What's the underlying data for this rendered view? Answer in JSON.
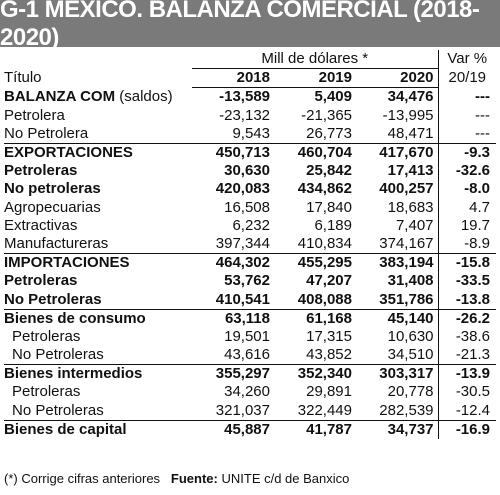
{
  "title": "G-1  MÉXICO. BALANZA COMERCIAL (2018-2020)",
  "header": {
    "units": "Mill de dólares *",
    "var_label": "Var %",
    "titulo_label": "Título",
    "years": [
      "2018",
      "2019",
      "2020"
    ],
    "var_period": "20/19"
  },
  "chart_data": {
    "type": "table",
    "columns": [
      "Título",
      "2018",
      "2019",
      "2020",
      "Var % 20/19"
    ],
    "rows": [
      {
        "label": "BALANZA COM",
        "label_suffix": " (saldos)",
        "values": [
          "-13,589",
          "5,409",
          "34,476"
        ],
        "var": "---",
        "bold": true,
        "indent": false,
        "sep": false
      },
      {
        "label": "Petrolera",
        "label_suffix": "",
        "values": [
          "-23,132",
          "-21,365",
          "-13,995"
        ],
        "var": "---",
        "bold": false,
        "indent": false,
        "sep": false
      },
      {
        "label": "No Petrolera",
        "label_suffix": "",
        "values": [
          "9,543",
          "26,773",
          "48,471"
        ],
        "var": "---",
        "bold": false,
        "indent": false,
        "sep": false
      },
      {
        "label": "EXPORTACIONES",
        "label_suffix": "",
        "values": [
          "450,713",
          "460,704",
          "417,670"
        ],
        "var": "-9.3",
        "bold": true,
        "indent": false,
        "sep": true
      },
      {
        "label": "Petroleras",
        "label_suffix": "",
        "values": [
          "30,630",
          "25,842",
          "17,413"
        ],
        "var": "-32.6",
        "bold": true,
        "indent": false,
        "sep": false
      },
      {
        "label": "No petroleras",
        "label_suffix": "",
        "values": [
          "420,083",
          "434,862",
          "400,257"
        ],
        "var": "-8.0",
        "bold": true,
        "indent": false,
        "sep": false
      },
      {
        "label": "Agropecuarias",
        "label_suffix": "",
        "values": [
          "16,508",
          "17,840",
          "18,683"
        ],
        "var": "4.7",
        "bold": false,
        "indent": false,
        "sep": false
      },
      {
        "label": "Extractivas",
        "label_suffix": "",
        "values": [
          "6,232",
          "6,189",
          "7,407"
        ],
        "var": "19.7",
        "bold": false,
        "indent": false,
        "sep": false
      },
      {
        "label": "Manufactureras",
        "label_suffix": "",
        "values": [
          "397,344",
          "410,834",
          "374,167"
        ],
        "var": "-8.9",
        "bold": false,
        "indent": false,
        "sep": false
      },
      {
        "label": "IMPORTACIONES",
        "label_suffix": "",
        "values": [
          "464,302",
          "455,295",
          "383,194"
        ],
        "var": "-15.8",
        "bold": true,
        "indent": false,
        "sep": true
      },
      {
        "label": "Petroleras",
        "label_suffix": "",
        "values": [
          "53,762",
          "47,207",
          "31,408"
        ],
        "var": "-33.5",
        "bold": true,
        "indent": false,
        "sep": false
      },
      {
        "label": "No Petroleras",
        "label_suffix": "",
        "values": [
          "410,541",
          "408,088",
          "351,786"
        ],
        "var": "-13.8",
        "bold": true,
        "indent": false,
        "sep": false
      },
      {
        "label": "Bienes de consumo",
        "label_suffix": "",
        "values": [
          "63,118",
          "61,168",
          "45,140"
        ],
        "var": "-26.2",
        "bold": true,
        "indent": false,
        "sep": true
      },
      {
        "label": "Petroleras",
        "label_suffix": "",
        "values": [
          "19,501",
          "17,315",
          "10,630"
        ],
        "var": "-38.6",
        "bold": false,
        "indent": true,
        "sep": false
      },
      {
        "label": "No Petroleras",
        "label_suffix": "",
        "values": [
          "43,616",
          "43,852",
          "34,510"
        ],
        "var": "-21.3",
        "bold": false,
        "indent": true,
        "sep": false
      },
      {
        "label": "Bienes intermedios",
        "label_suffix": "",
        "values": [
          "355,297",
          "352,340",
          "303,317"
        ],
        "var": "-13.9",
        "bold": true,
        "indent": false,
        "sep": true
      },
      {
        "label": "Petroleras",
        "label_suffix": "",
        "values": [
          "34,260",
          "29,891",
          "20,778"
        ],
        "var": "-30.5",
        "bold": false,
        "indent": true,
        "sep": false
      },
      {
        "label": "No Petroleras",
        "label_suffix": "",
        "values": [
          "321,037",
          "322,449",
          "282,539"
        ],
        "var": "-12.4",
        "bold": false,
        "indent": true,
        "sep": false
      },
      {
        "label": "Bienes de capital",
        "label_suffix": "",
        "values": [
          "45,887",
          "41,787",
          "34,737"
        ],
        "var": "-16.9",
        "bold": true,
        "indent": false,
        "sep": true
      }
    ]
  },
  "footer": {
    "note": "(*) Corrige cifras anteriores",
    "source_label": "Fuente:",
    "source_text": " UNITE c/d de Banxico"
  },
  "colors": {
    "title_bg": "#7a7a7a",
    "title_fg": "#ffffff"
  }
}
